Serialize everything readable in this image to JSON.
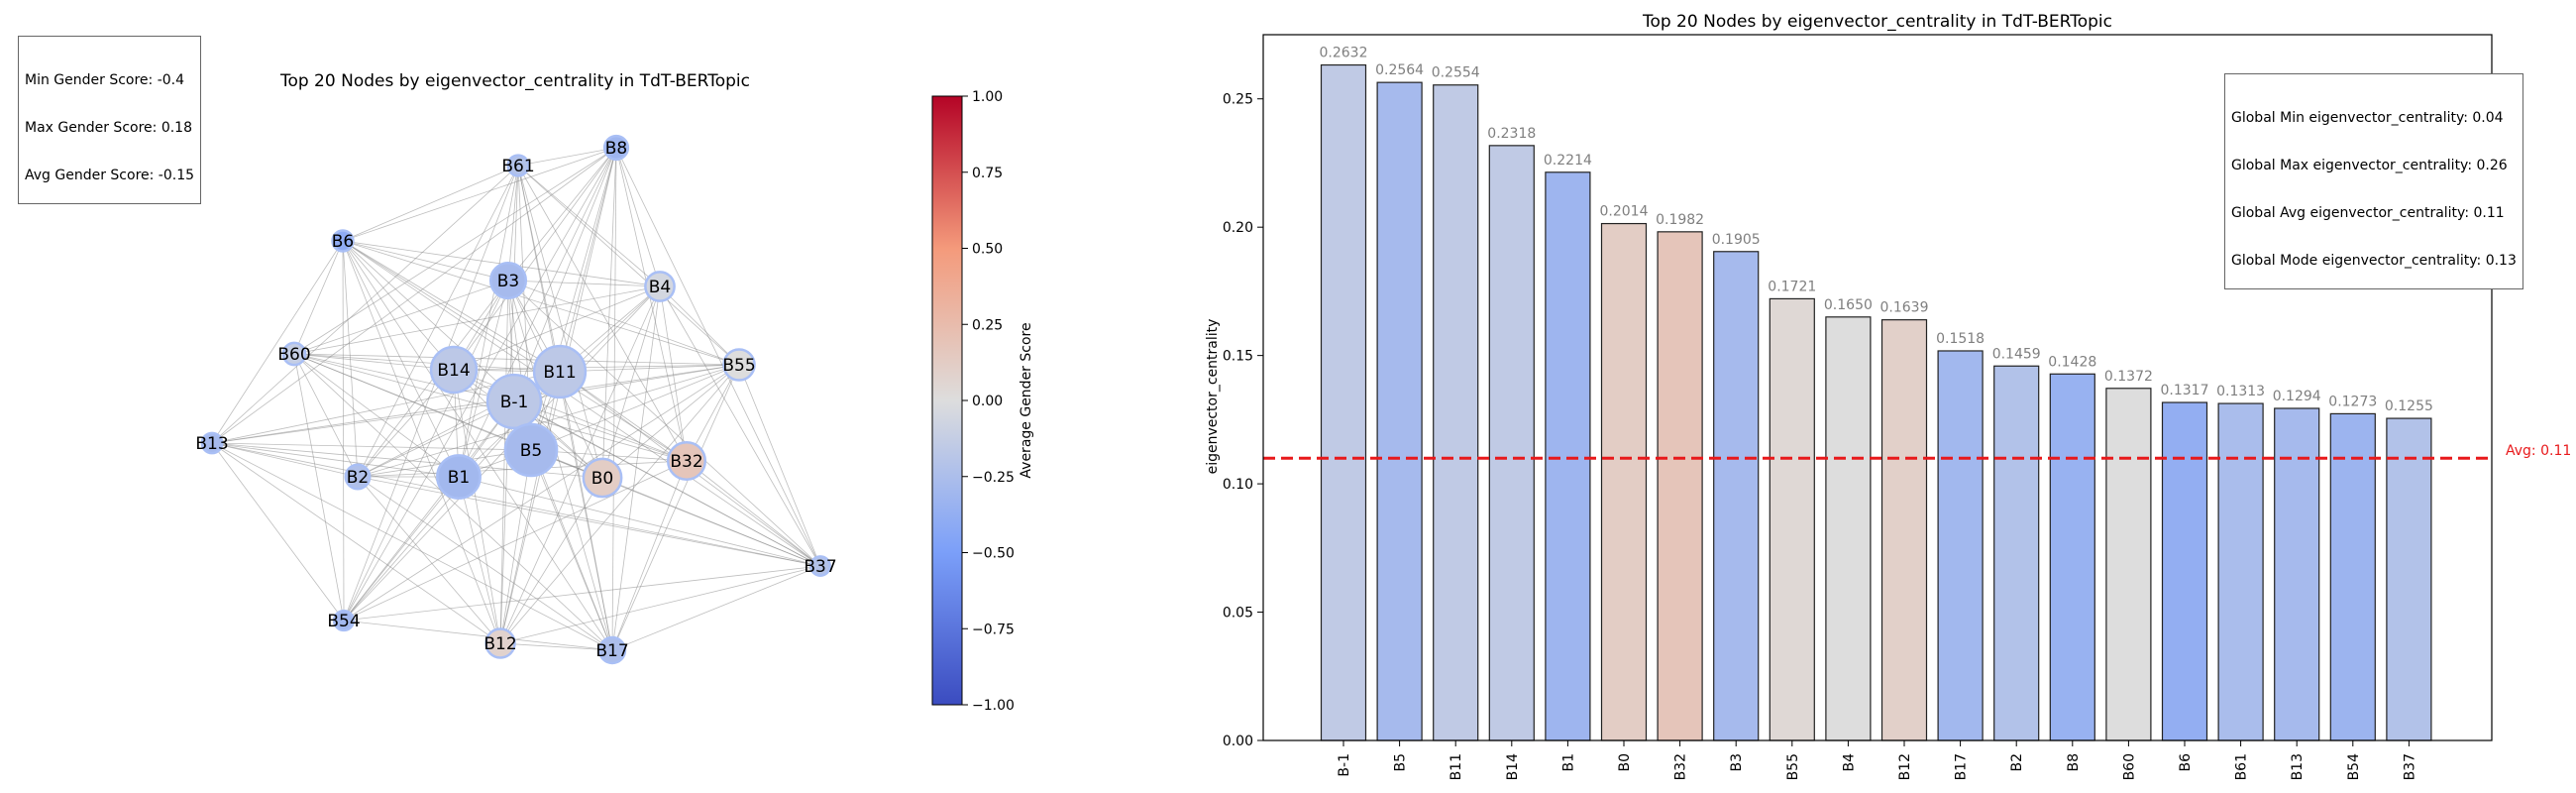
{
  "network": {
    "title": "Top 20 Nodes by eigenvector_centrality in TdT-BERTopic",
    "stats": [
      "Min Gender Score: -0.4",
      "Max Gender Score: 0.18",
      "Avg Gender Score: -0.15"
    ],
    "nodes": [
      {
        "id": "B8",
        "score": -0.32,
        "size": 0.1428
      },
      {
        "id": "B61",
        "score": -0.22,
        "size": 0.1313
      },
      {
        "id": "B6",
        "score": -0.4,
        "size": 0.1317
      },
      {
        "id": "B3",
        "score": -0.28,
        "size": 0.1905
      },
      {
        "id": "B4",
        "score": -0.05,
        "size": 0.165
      },
      {
        "id": "B60",
        "score": -0.12,
        "size": 0.1372
      },
      {
        "id": "B14",
        "score": -0.17,
        "size": 0.2318
      },
      {
        "id": "B11",
        "score": -0.17,
        "size": 0.2554
      },
      {
        "id": "B55",
        "score": 0.0,
        "size": 0.1721
      },
      {
        "id": "B-1",
        "score": -0.17,
        "size": 0.2632
      },
      {
        "id": "B13",
        "score": -0.28,
        "size": 0.1294
      },
      {
        "id": "B5",
        "score": -0.28,
        "size": 0.2564
      },
      {
        "id": "B2",
        "score": -0.23,
        "size": 0.1459
      },
      {
        "id": "B1",
        "score": -0.3,
        "size": 0.2214
      },
      {
        "id": "B0",
        "score": 0.12,
        "size": 0.2014
      },
      {
        "id": "B32",
        "score": 0.18,
        "size": 0.1982
      },
      {
        "id": "B37",
        "score": -0.22,
        "size": 0.1255
      },
      {
        "id": "B54",
        "score": -0.3,
        "size": 0.1273
      },
      {
        "id": "B12",
        "score": 0.08,
        "size": 0.1639
      },
      {
        "id": "B17",
        "score": -0.25,
        "size": 0.1518
      }
    ]
  },
  "colorbar": {
    "label": "Average Gender Score",
    "range": [
      -1.0,
      1.0
    ],
    "ticks": [
      "1.00",
      "0.75",
      "0.50",
      "0.25",
      "0.00",
      "−0.25",
      "−0.50",
      "−0.75",
      "−1.00"
    ]
  },
  "chart_data": {
    "type": "bar",
    "title": "Top 20 Nodes by eigenvector_centrality in TdT-BERTopic",
    "xlabel": "",
    "ylabel": "eigenvector_centrality",
    "ylim": [
      0,
      0.275
    ],
    "yticks": [
      "0.00",
      "0.05",
      "0.10",
      "0.15",
      "0.20",
      "0.25"
    ],
    "categories": [
      "B-1",
      "B5",
      "B11",
      "B14",
      "B1",
      "B0",
      "B32",
      "B3",
      "B55",
      "B4",
      "B12",
      "B17",
      "B2",
      "B8",
      "B60",
      "B6",
      "B61",
      "B13",
      "B54",
      "B37"
    ],
    "values": [
      0.2632,
      0.2564,
      0.2554,
      0.2318,
      0.2214,
      0.2014,
      0.1982,
      0.1905,
      0.1721,
      0.165,
      0.1639,
      0.1518,
      0.1459,
      0.1428,
      0.1372,
      0.1317,
      0.1313,
      0.1294,
      0.1273,
      0.1255
    ],
    "value_labels": [
      "0.2632",
      "0.2564",
      "0.2554",
      "0.2318",
      "0.2214",
      "0.2014",
      "0.1982",
      "0.1905",
      "0.1721",
      "0.1650",
      "0.1639",
      "0.1518",
      "0.1459",
      "0.1428",
      "0.1372",
      "0.1317",
      "0.1313",
      "0.1294",
      "0.1273",
      "0.1255"
    ],
    "bar_gender_scores": [
      -0.15,
      -0.28,
      -0.15,
      -0.15,
      -0.32,
      0.12,
      0.18,
      -0.28,
      0.04,
      0.0,
      0.1,
      -0.3,
      -0.22,
      -0.35,
      0.0,
      -0.38,
      -0.26,
      -0.28,
      -0.33,
      -0.22
    ],
    "avg_line": {
      "value": 0.11,
      "label": "Avg: 0.11",
      "color": "#e8191b"
    },
    "stats": [
      "Global Min eigenvector_centrality: 0.04",
      "Global Max eigenvector_centrality: 0.26",
      "Global Avg eigenvector_centrality: 0.11",
      "Global Mode eigenvector_centrality: 0.13"
    ],
    "grid": false
  }
}
